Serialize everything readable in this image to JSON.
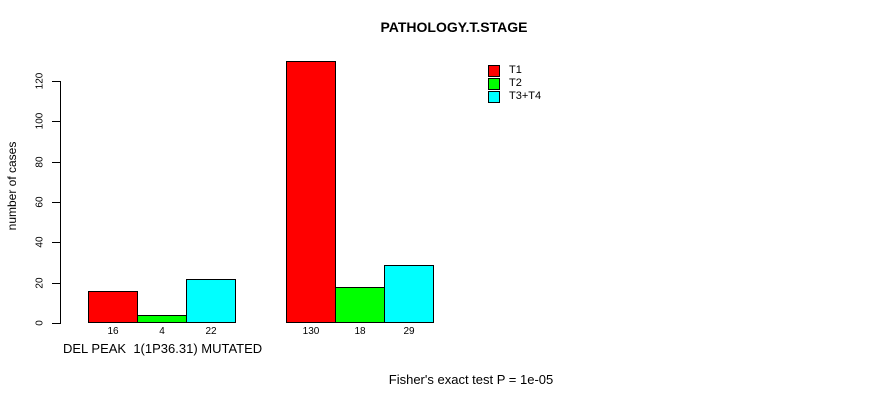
{
  "title": "PATHOLOGY.T.STAGE",
  "y_axis": {
    "label": "number of cases",
    "ticks": [
      0,
      20,
      40,
      60,
      80,
      100,
      120
    ]
  },
  "x_axis": {
    "group1_label": "DEL PEAK  1(1P36.31) MUTATED"
  },
  "annotation": "Fisher's exact test P = 1e-05",
  "legend": {
    "items": [
      {
        "label": "T1",
        "color": "#FF0000"
      },
      {
        "label": "T2",
        "color": "#00FF00"
      },
      {
        "label": "T3+T4",
        "color": "#00FFFF"
      }
    ]
  },
  "chart_data": {
    "type": "bar",
    "title": "PATHOLOGY.T.STAGE",
    "xlabel": "",
    "ylabel": "number of cases",
    "ylim": [
      0,
      130
    ],
    "yticks": [
      0,
      20,
      40,
      60,
      80,
      100,
      120
    ],
    "grid": false,
    "legend_position": "top-right",
    "groups": [
      "DEL PEAK  1(1P36.31) MUTATED",
      ""
    ],
    "series": [
      {
        "name": "T1",
        "color": "#FF0000",
        "values": [
          16,
          130
        ]
      },
      {
        "name": "T2",
        "color": "#00FF00",
        "values": [
          4,
          18
        ]
      },
      {
        "name": "T3+T4",
        "color": "#00FFFF",
        "values": [
          22,
          29
        ]
      }
    ],
    "bar_value_labels": [
      [
        "16",
        "4",
        "22"
      ],
      [
        "130",
        "18",
        "29"
      ]
    ],
    "annotation": "Fisher's exact test P = 1e-05"
  }
}
